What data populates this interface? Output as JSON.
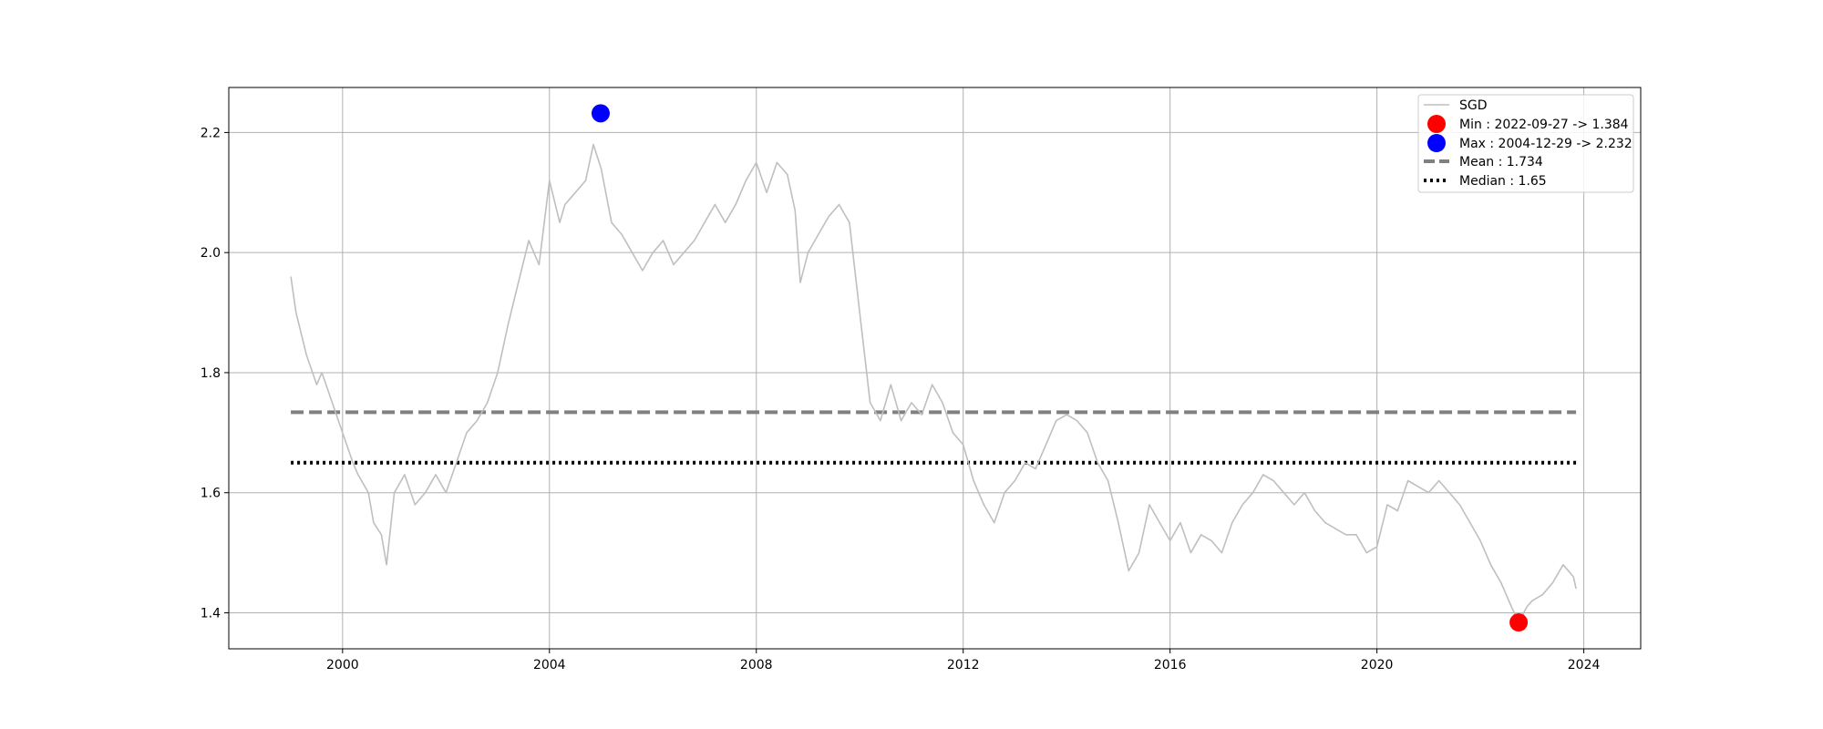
{
  "chart_data": {
    "type": "line",
    "title": "",
    "xlabel": "",
    "ylabel": "",
    "grid": true,
    "legend_position": "top-right",
    "xlim": [
      1997.8,
      2025.1
    ],
    "ylim": [
      1.34,
      2.275
    ],
    "x_ticks": [
      2000,
      2004,
      2008,
      2012,
      2016,
      2020,
      2024
    ],
    "x_tick_labels": [
      "2000",
      "2004",
      "2008",
      "2012",
      "2016",
      "2020",
      "2024"
    ],
    "y_ticks": [
      1.4,
      1.6,
      1.8,
      2.0,
      2.2
    ],
    "y_tick_labels": [
      "1.4",
      "1.6",
      "1.8",
      "2.0",
      "2.2"
    ],
    "series": [
      {
        "name": "SGD",
        "color": "#bfbfbf",
        "x": [
          1999.0,
          1999.1,
          1999.3,
          1999.5,
          1999.6,
          1999.8,
          2000.0,
          2000.2,
          2000.3,
          2000.5,
          2000.6,
          2000.75,
          2000.85,
          2001.0,
          2001.2,
          2001.4,
          2001.6,
          2001.8,
          2002.0,
          2002.2,
          2002.4,
          2002.6,
          2002.8,
          2003.0,
          2003.2,
          2003.4,
          2003.6,
          2003.8,
          2004.0,
          2004.2,
          2004.3,
          2004.5,
          2004.7,
          2004.85,
          2005.0,
          2005.2,
          2005.4,
          2005.6,
          2005.8,
          2006.0,
          2006.2,
          2006.4,
          2006.6,
          2006.8,
          2007.0,
          2007.2,
          2007.4,
          2007.6,
          2007.8,
          2008.0,
          2008.2,
          2008.4,
          2008.6,
          2008.75,
          2008.85,
          2009.0,
          2009.2,
          2009.4,
          2009.6,
          2009.8,
          2010.0,
          2010.2,
          2010.4,
          2010.6,
          2010.8,
          2011.0,
          2011.2,
          2011.4,
          2011.6,
          2011.8,
          2012.0,
          2012.2,
          2012.4,
          2012.6,
          2012.8,
          2013.0,
          2013.2,
          2013.4,
          2013.6,
          2013.8,
          2014.0,
          2014.2,
          2014.4,
          2014.6,
          2014.8,
          2015.0,
          2015.2,
          2015.4,
          2015.6,
          2015.8,
          2016.0,
          2016.2,
          2016.4,
          2016.6,
          2016.8,
          2017.0,
          2017.2,
          2017.4,
          2017.6,
          2017.8,
          2018.0,
          2018.2,
          2018.4,
          2018.6,
          2018.8,
          2019.0,
          2019.2,
          2019.4,
          2019.6,
          2019.8,
          2020.0,
          2020.2,
          2020.4,
          2020.6,
          2020.8,
          2021.0,
          2021.2,
          2021.4,
          2021.6,
          2021.8,
          2022.0,
          2022.2,
          2022.4,
          2022.6,
          2022.74,
          2022.9,
          2023.0,
          2023.2,
          2023.4,
          2023.6,
          2023.8,
          2023.85
        ],
        "values": [
          1.96,
          1.9,
          1.83,
          1.78,
          1.8,
          1.75,
          1.7,
          1.65,
          1.63,
          1.6,
          1.55,
          1.53,
          1.48,
          1.6,
          1.63,
          1.58,
          1.6,
          1.63,
          1.6,
          1.65,
          1.7,
          1.72,
          1.75,
          1.8,
          1.88,
          1.95,
          2.02,
          1.98,
          2.12,
          2.05,
          2.08,
          2.1,
          2.12,
          2.18,
          2.14,
          2.05,
          2.03,
          2.0,
          1.97,
          2.0,
          2.02,
          1.98,
          2.0,
          2.02,
          2.05,
          2.08,
          2.05,
          2.08,
          2.12,
          2.15,
          2.1,
          2.15,
          2.13,
          2.07,
          1.95,
          2.0,
          2.03,
          2.06,
          2.08,
          2.05,
          1.9,
          1.75,
          1.72,
          1.78,
          1.72,
          1.75,
          1.73,
          1.78,
          1.75,
          1.7,
          1.68,
          1.62,
          1.58,
          1.55,
          1.6,
          1.62,
          1.65,
          1.64,
          1.68,
          1.72,
          1.73,
          1.72,
          1.7,
          1.65,
          1.62,
          1.55,
          1.47,
          1.5,
          1.58,
          1.55,
          1.52,
          1.55,
          1.5,
          1.53,
          1.52,
          1.5,
          1.55,
          1.58,
          1.6,
          1.63,
          1.62,
          1.6,
          1.58,
          1.6,
          1.57,
          1.55,
          1.54,
          1.53,
          1.53,
          1.5,
          1.51,
          1.58,
          1.57,
          1.62,
          1.61,
          1.6,
          1.62,
          1.6,
          1.58,
          1.55,
          1.52,
          1.48,
          1.45,
          1.41,
          1.384,
          1.41,
          1.42,
          1.43,
          1.45,
          1.48,
          1.46,
          1.44
        ]
      }
    ],
    "min_point": {
      "label": "Min : 2022-09-27 -> 1.384",
      "x": 2022.74,
      "y": 1.384,
      "color": "#ff0000"
    },
    "max_point": {
      "label": "Max : 2004-12-29 -> 2.232",
      "x": 2004.99,
      "y": 2.232,
      "color": "#0000ff"
    },
    "mean_line": {
      "label": "Mean : 1.734",
      "y": 1.734,
      "x_start": 1999.0,
      "x_end": 2023.85,
      "color": "#808080"
    },
    "median_line": {
      "label": "Median : 1.65",
      "y": 1.65,
      "x_start": 1999.0,
      "x_end": 2023.85,
      "color": "#000000"
    },
    "legend": [
      "SGD",
      "Min : 2022-09-27 -> 1.384",
      "Max : 2004-12-29 -> 2.232",
      "Mean : 1.734",
      "Median : 1.65"
    ]
  }
}
